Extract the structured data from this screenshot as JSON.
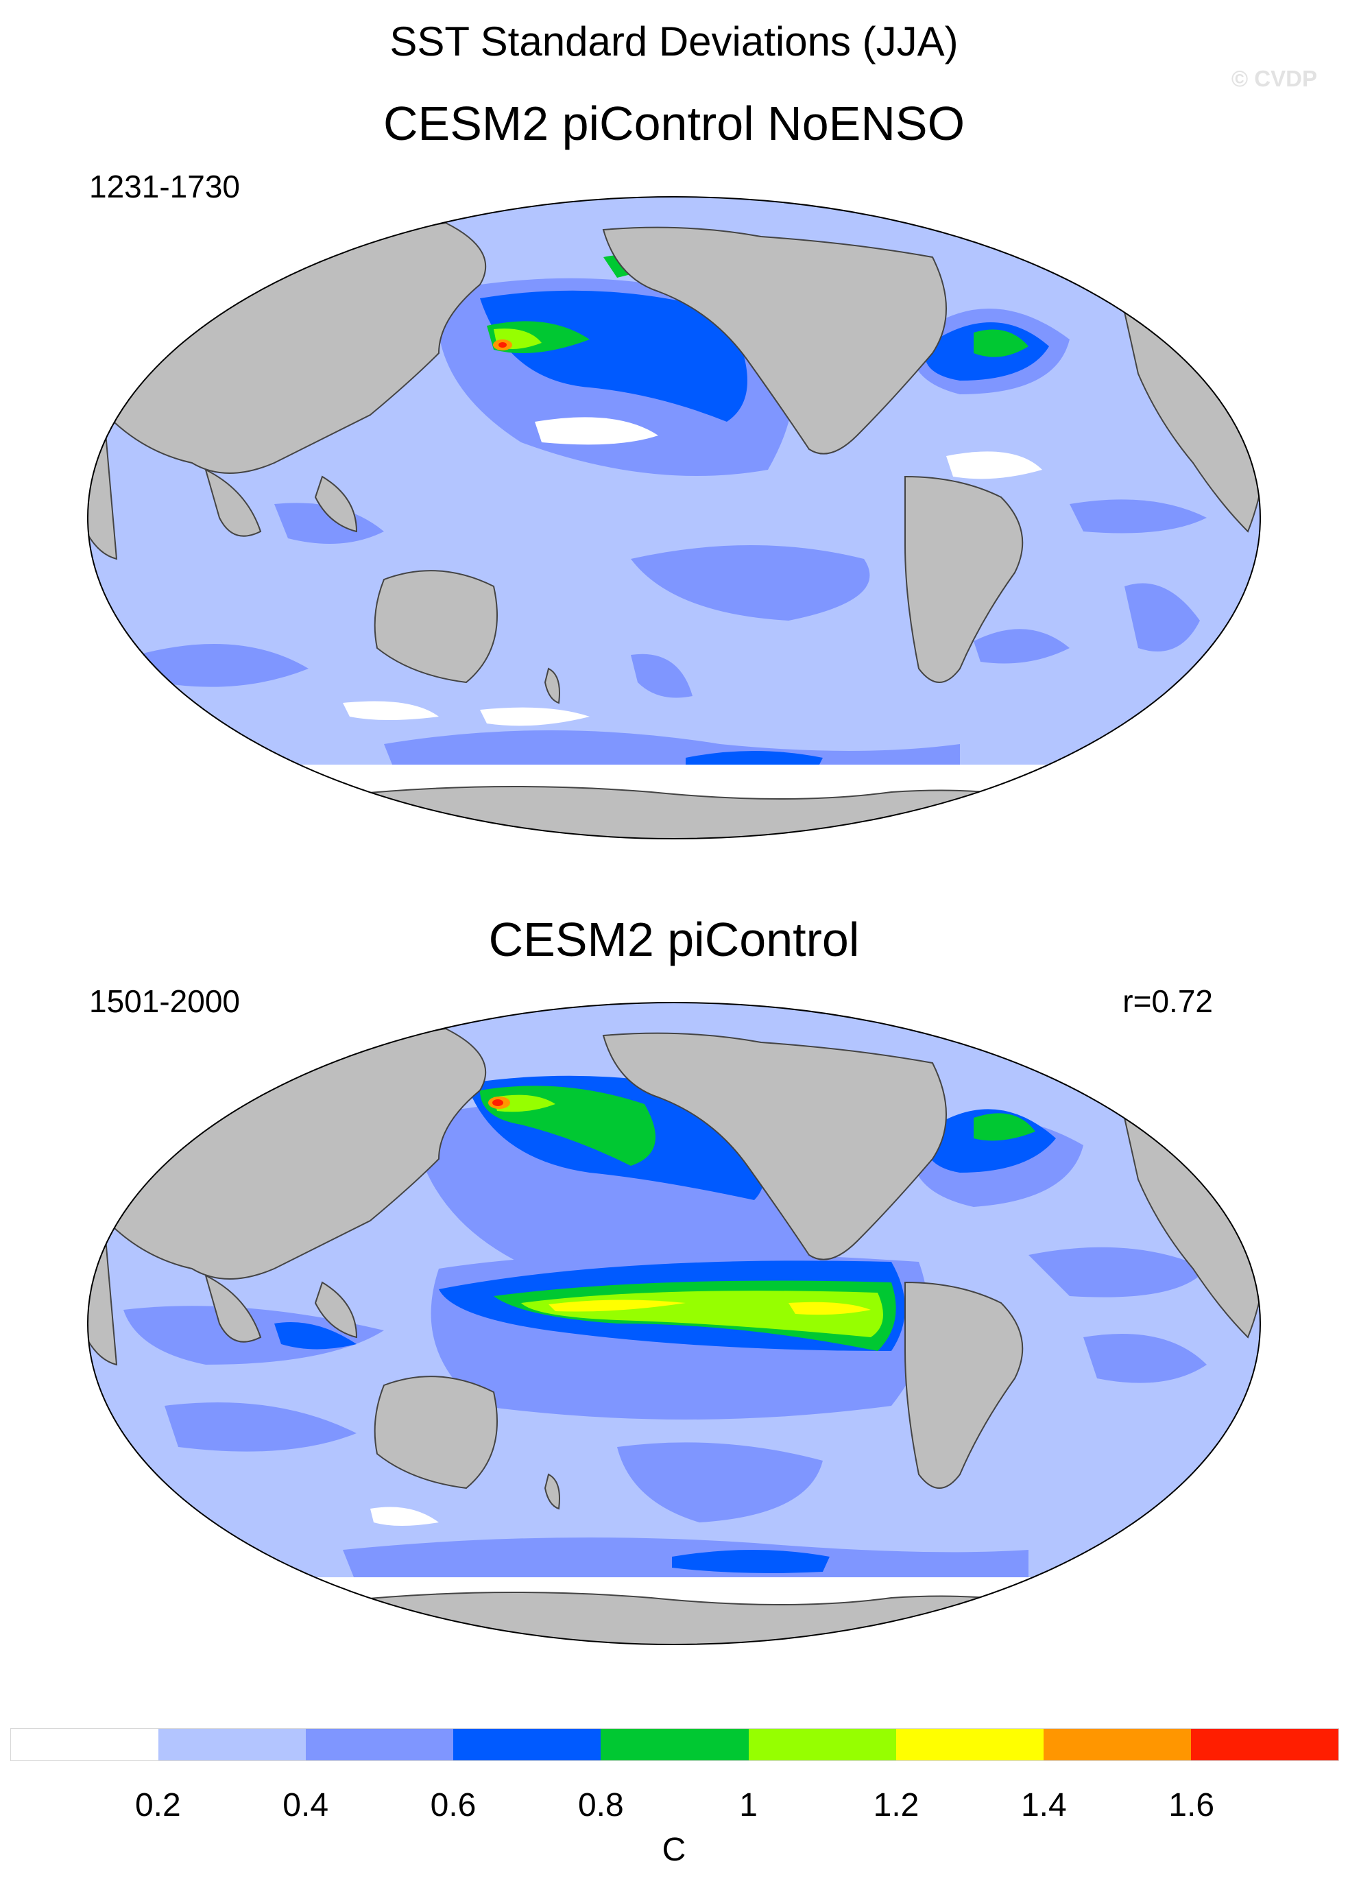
{
  "title": "SST Standard Deviations (JJA)",
  "copyright": "© CVDP",
  "panels": [
    {
      "name": "CESM2 piControl NoENSO",
      "period": "1231-1730",
      "corr": ""
    },
    {
      "name": "CESM2 piControl",
      "period": "1501-2000",
      "corr": "r=0.72"
    }
  ],
  "colorbar": {
    "colors": [
      "#ffffff",
      "#b3c5ff",
      "#7f96ff",
      "#005aff",
      "#00c832",
      "#96ff00",
      "#ffff00",
      "#ff9600",
      "#ff1e00"
    ],
    "ticks": [
      "0.2",
      "0.4",
      "0.6",
      "0.8",
      "1",
      "1.2",
      "1.4",
      "1.6"
    ],
    "unit": "C"
  },
  "colors": {
    "land": "#bebebe",
    "coast": "#444444"
  }
}
